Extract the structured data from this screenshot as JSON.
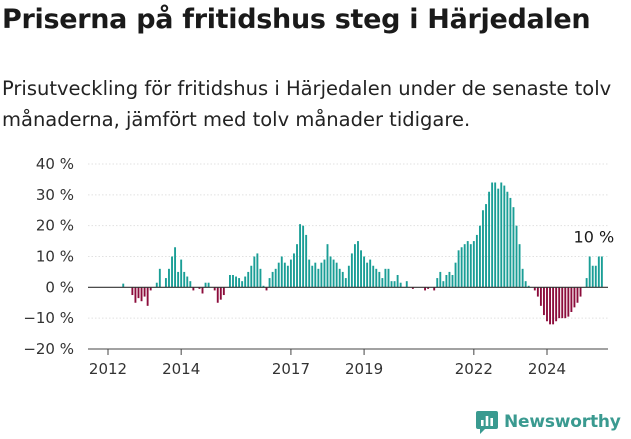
{
  "chart_data": {
    "type": "bar",
    "title": "Priserna på fritidshus steg i Härjedalen",
    "subtitle": "Prisutveckling för fritidshus i Härjedalen under de senaste tolv månaderna, jämfört med tolv månader tidigare.",
    "xlabel": "",
    "ylabel": "",
    "ylim": [
      -20,
      40
    ],
    "yticks": [
      -20,
      -10,
      0,
      10,
      20,
      30,
      40
    ],
    "ytick_labels": [
      "−20 %",
      "−10 %",
      "0 %",
      "10 %",
      "20 %",
      "30 %",
      "40 %"
    ],
    "xticks": [
      2012,
      2014,
      2017,
      2019,
      2022,
      2024
    ],
    "grid": true,
    "positive_color": "#1a9e96",
    "negative_color": "#8c0d3c",
    "x_start": "2012-01",
    "x_end": "2025-02",
    "values": [
      0,
      0,
      0,
      0,
      0,
      1.2,
      0,
      0,
      -2.5,
      -5,
      -3.5,
      -4.5,
      -3,
      -6,
      -1,
      0,
      1.5,
      6,
      0,
      3,
      6,
      10,
      13,
      5,
      9,
      5,
      3.5,
      2,
      -1,
      0,
      -0.5,
      -2,
      1.5,
      1.5,
      0,
      -1,
      -5,
      -4,
      -2.5,
      0,
      4,
      4,
      3.5,
      3,
      2,
      3.5,
      5,
      7,
      10,
      11,
      6,
      0.5,
      -1,
      3,
      5,
      6,
      8,
      10,
      8,
      7,
      9,
      11,
      14,
      20.5,
      20,
      17,
      9,
      7,
      8,
      6,
      8,
      9,
      14,
      10,
      9,
      8,
      6,
      5,
      3,
      7,
      11,
      14,
      15,
      12,
      10,
      8,
      9,
      7,
      6,
      5,
      3,
      6,
      6,
      2,
      2,
      4,
      1.5,
      0,
      2,
      0,
      -0.5,
      0,
      0,
      0,
      -1,
      -0.5,
      0,
      -1,
      3,
      5,
      2,
      4,
      5,
      4,
      8,
      12,
      13,
      14,
      15,
      14,
      15,
      17,
      20,
      25,
      27,
      31,
      34,
      34,
      32,
      34,
      33,
      31,
      29,
      26,
      20,
      14,
      6,
      2,
      0.5,
      0,
      -1,
      -3,
      -6,
      -9,
      -11,
      -12,
      -12,
      -11,
      -10,
      -10,
      -10,
      -9.5,
      -8,
      -6.5,
      -5,
      -3,
      0,
      3,
      10,
      7,
      7,
      10,
      10
    ],
    "annotations": [
      {
        "text": "10 %"
      }
    ]
  },
  "logo": {
    "text": "Newsworthy"
  }
}
